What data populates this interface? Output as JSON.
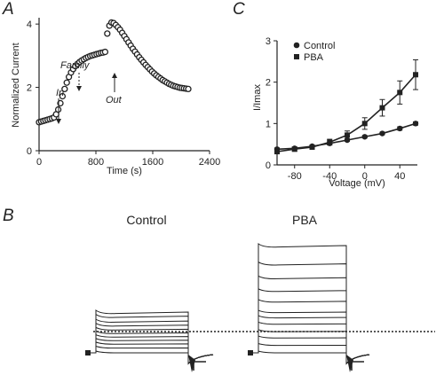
{
  "panels": {
    "A": "A",
    "B": "B",
    "C": "C"
  },
  "chart_data": [
    {
      "type": "scatter",
      "panel": "A",
      "xlabel": "Time (s)",
      "ylabel": "Normalized  Current",
      "xlim": [
        0,
        2400
      ],
      "ylim": [
        0,
        4.2
      ],
      "xticks": [
        "0",
        "800",
        "1600",
        "2400"
      ],
      "yticks": [
        "0",
        "2",
        "4"
      ],
      "annotations": [
        "In",
        "Family",
        "Out"
      ],
      "series": [
        {
          "x": [
            0,
            30,
            60,
            90,
            120,
            150,
            180,
            210,
            240,
            270,
            300,
            330,
            360,
            390,
            420,
            450,
            480,
            510,
            540,
            570,
            600,
            630,
            660,
            690,
            720,
            750,
            780,
            810,
            840,
            870,
            900,
            930,
            960,
            990,
            1020,
            1050,
            1080,
            1110,
            1140,
            1170,
            1200,
            1230,
            1260,
            1290,
            1320,
            1350,
            1380,
            1410,
            1440,
            1470,
            1500,
            1530,
            1560,
            1590,
            1620,
            1650,
            1680,
            1710,
            1740,
            1770,
            1800,
            1830,
            1860,
            1890,
            1920,
            1950,
            1980,
            2010,
            2040,
            2070,
            2100
          ],
          "y": [
            0.9,
            0.92,
            0.94,
            0.96,
            0.98,
            1.0,
            1.02,
            1.05,
            1.15,
            1.3,
            1.5,
            1.72,
            1.95,
            2.15,
            2.33,
            2.47,
            2.58,
            2.67,
            2.74,
            2.8,
            2.85,
            2.89,
            2.93,
            2.96,
            2.99,
            3.01,
            3.03,
            3.05,
            3.07,
            3.09,
            3.1,
            3.12,
            3.7,
            3.95,
            4.05,
            4.03,
            3.97,
            3.9,
            3.82,
            3.72,
            3.62,
            3.52,
            3.42,
            3.32,
            3.22,
            3.13,
            3.04,
            2.95,
            2.87,
            2.79,
            2.71,
            2.64,
            2.57,
            2.5,
            2.44,
            2.38,
            2.33,
            2.28,
            2.23,
            2.19,
            2.15,
            2.11,
            2.08,
            2.05,
            2.03,
            2.01,
            1.99,
            1.98,
            1.97,
            1.96,
            1.95
          ]
        }
      ]
    },
    {
      "type": "line",
      "panel": "C",
      "xlabel": "Voltage (mV)",
      "ylabel": "I/Imax",
      "xlim": [
        -100,
        60
      ],
      "ylim": [
        0,
        3
      ],
      "xticks": [
        "-80",
        "-40",
        "0",
        "40"
      ],
      "yticks": [
        "0",
        "1",
        "2",
        "3"
      ],
      "legend_position": "top-left",
      "x": [
        -100,
        -80,
        -60,
        -40,
        -20,
        0,
        20,
        40,
        58
      ],
      "series": [
        {
          "name": "Control",
          "marker": "circle",
          "values": [
            0.38,
            0.4,
            0.45,
            0.52,
            0.6,
            0.68,
            0.76,
            0.88,
            1.0
          ],
          "errors": [
            0.03,
            0.03,
            0.03,
            0.03,
            0.03,
            0.03,
            0.03,
            0.04,
            0.04
          ]
        },
        {
          "name": "PBA",
          "marker": "square",
          "values": [
            0.32,
            0.38,
            0.43,
            0.55,
            0.72,
            1.0,
            1.38,
            1.75,
            2.18
          ],
          "errors": [
            0.04,
            0.05,
            0.05,
            0.07,
            0.1,
            0.14,
            0.2,
            0.28,
            0.36
          ]
        }
      ]
    }
  ],
  "traces": {
    "control": {
      "title": "Control",
      "step_levels": [
        0.0,
        0.12,
        0.22,
        0.31,
        0.4,
        0.49,
        0.58,
        0.68,
        0.78,
        0.9,
        1.0
      ]
    },
    "pba": {
      "title": "PBA",
      "step_levels": [
        0.0,
        0.07,
        0.14,
        0.2,
        0.27,
        0.33,
        0.38,
        0.48,
        0.58,
        0.7,
        0.83,
        1.0
      ]
    }
  }
}
